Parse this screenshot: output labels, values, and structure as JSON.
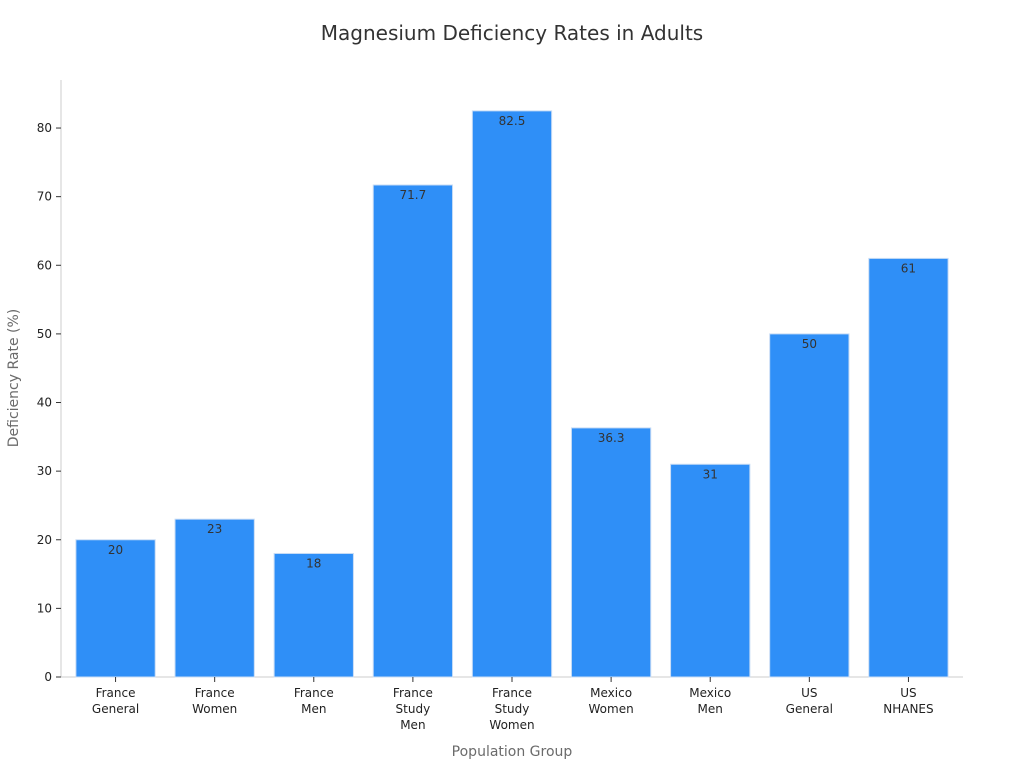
{
  "chart_data": {
    "type": "bar",
    "title": "Magnesium Deficiency Rates in Adults",
    "xlabel": "Population Group",
    "ylabel": "Deficiency Rate (%)",
    "categories": [
      [
        "France",
        "General"
      ],
      [
        "France",
        "Women"
      ],
      [
        "France",
        "Men"
      ],
      [
        "France",
        "Study",
        "Men"
      ],
      [
        "France",
        "Study",
        "Women"
      ],
      [
        "Mexico",
        "Women"
      ],
      [
        "Mexico",
        "Men"
      ],
      [
        "US",
        "General"
      ],
      [
        "US",
        "NHANES"
      ]
    ],
    "values": [
      20,
      23,
      18,
      71.7,
      82.5,
      36.3,
      31,
      50,
      61
    ],
    "data_labels": [
      "20",
      "23",
      "18",
      "71.7",
      "82.5",
      "36.3",
      "31",
      "50",
      "61"
    ],
    "yticks": [
      0,
      10,
      20,
      30,
      40,
      50,
      60,
      70,
      80
    ],
    "ylim": [
      0,
      87
    ],
    "grid": false,
    "bar_color": "#2f8ff7",
    "bar_edge_color": "#c8dcf5"
  }
}
